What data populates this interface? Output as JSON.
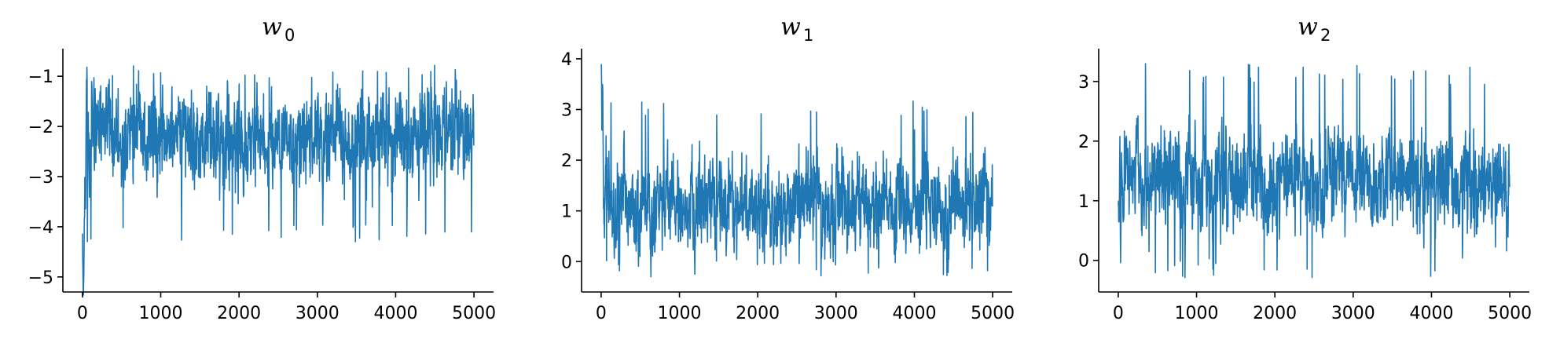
{
  "colors": {
    "series": "#1f77b4",
    "axis": "#000000",
    "background": "#ffffff"
  },
  "chart_data": [
    {
      "type": "line",
      "title": "w",
      "title_subscript": "0",
      "x_ticks": [
        0,
        1000,
        2000,
        3000,
        4000,
        5000
      ],
      "y_ticks": [
        -5,
        -4,
        -3,
        -2,
        -1
      ],
      "xlim": [
        -250,
        5250
      ],
      "ylim": [
        -5.3,
        -0.45
      ],
      "grid": false,
      "series": [
        {
          "n_samples": 5000,
          "x": [
            0,
            10,
            20,
            30,
            40,
            50,
            60,
            80,
            120,
            170,
            230,
            300,
            380,
            470,
            560,
            650,
            740,
            830,
            920,
            1010,
            1100,
            1190,
            1280,
            1370,
            1460,
            1550,
            1640,
            1730,
            1820,
            1910,
            2000,
            2090,
            2180,
            2270,
            2360,
            2450,
            2540,
            2630,
            2720,
            2810,
            2900,
            2990,
            3080,
            3170,
            3260,
            3350,
            3440,
            3530,
            3620,
            3710,
            3800,
            3890,
            3980,
            4070,
            4160,
            4250,
            4340,
            4430,
            4520,
            4610,
            4700,
            4790,
            4880,
            4970,
            5000
          ],
          "values": [
            -4.0,
            -5.2,
            -4.6,
            -3.2,
            -3.5,
            -1.3,
            -0.75,
            -2.8,
            -1.9,
            -2.4,
            -2.0,
            -2.2,
            -2.3,
            -2.1,
            -2.4,
            -2.2,
            -2.0,
            -2.3,
            -2.2,
            -2.5,
            -2.1,
            -2.3,
            -2.2,
            -2.0,
            -2.4,
            -2.3,
            -2.1,
            -2.2,
            -2.3,
            -2.0,
            -2.2,
            -2.6,
            -2.3,
            -2.1,
            -2.4,
            -2.2,
            -2.0,
            -2.3,
            -2.2,
            -2.4,
            -2.1,
            -2.2,
            -2.3,
            -2.0,
            -2.2,
            -2.4,
            -2.3,
            -2.1,
            -2.2,
            -2.5,
            -2.1,
            -2.2,
            -2.3,
            -2.0,
            -2.4,
            -2.2,
            -2.1,
            -2.3,
            -2.2,
            -2.0,
            -2.3,
            -2.1,
            -2.4,
            -2.2,
            -2.0
          ],
          "band_low": -3.55,
          "band_high": -1.2,
          "spike_low": -4.3,
          "spike_high": -0.7
        }
      ]
    },
    {
      "type": "line",
      "title": "w",
      "title_subscript": "1",
      "x_ticks": [
        0,
        1000,
        2000,
        3000,
        4000,
        5000
      ],
      "y_ticks": [
        0,
        1,
        2,
        3,
        4
      ],
      "xlim": [
        -250,
        5250
      ],
      "ylim": [
        -0.6,
        4.2
      ],
      "grid": false,
      "series": [
        {
          "n_samples": 5000,
          "x": [
            0,
            10,
            20,
            30,
            40,
            60,
            80,
            120,
            170,
            230,
            300,
            380,
            470,
            560,
            650,
            740,
            830,
            920,
            1010,
            1100,
            1190,
            1280,
            1370,
            1460,
            1550,
            1640,
            1730,
            1820,
            1910,
            2000,
            2090,
            2180,
            2270,
            2360,
            2450,
            2540,
            2630,
            2720,
            2810,
            2900,
            2990,
            3080,
            3170,
            3260,
            3350,
            3440,
            3530,
            3620,
            3710,
            3800,
            3890,
            3980,
            4070,
            4160,
            4250,
            4340,
            4430,
            4520,
            4610,
            4700,
            4790,
            4880,
            4970,
            5000
          ],
          "values": [
            4.0,
            2.7,
            3.6,
            1.2,
            0.6,
            1.9,
            1.3,
            1.1,
            1.0,
            1.3,
            1.2,
            1.1,
            0.9,
            1.2,
            1.0,
            1.1,
            1.3,
            1.2,
            1.0,
            1.1,
            1.3,
            1.2,
            1.4,
            1.1,
            1.2,
            1.0,
            1.3,
            1.2,
            1.1,
            1.2,
            1.0,
            0.9,
            1.1,
            0.7,
            1.0,
            1.2,
            1.1,
            1.3,
            1.2,
            1.0,
            1.1,
            1.2,
            1.0,
            1.3,
            1.2,
            1.1,
            0.9,
            1.2,
            1.1,
            1.3,
            1.0,
            1.2,
            1.1,
            1.3,
            1.2,
            1.0,
            1.1,
            1.2,
            1.3,
            1.1,
            1.0,
            1.2,
            1.0,
            0.9
          ],
          "band_low": 0.15,
          "band_high": 2.4,
          "spike_low": -0.3,
          "spike_high": 3.2
        }
      ]
    },
    {
      "type": "line",
      "title": "w",
      "title_subscript": "2",
      "x_ticks": [
        0,
        1000,
        2000,
        3000,
        4000,
        5000
      ],
      "y_ticks": [
        0,
        1,
        2,
        3
      ],
      "xlim": [
        -250,
        5250
      ],
      "ylim": [
        -0.53,
        3.55
      ],
      "grid": false,
      "series": [
        {
          "n_samples": 5000,
          "x": [
            0,
            10,
            20,
            30,
            40,
            60,
            80,
            120,
            170,
            230,
            300,
            380,
            470,
            560,
            650,
            740,
            830,
            920,
            1010,
            1100,
            1190,
            1280,
            1370,
            1460,
            1550,
            1640,
            1730,
            1820,
            1910,
            2000,
            2090,
            2180,
            2270,
            2360,
            2450,
            2540,
            2630,
            2720,
            2810,
            2900,
            2990,
            3080,
            3170,
            3260,
            3350,
            3440,
            3530,
            3620,
            3710,
            3800,
            3890,
            3980,
            4070,
            4160,
            4250,
            4340,
            4430,
            4520,
            4610,
            4700,
            4790,
            4880,
            4970,
            5000
          ],
          "values": [
            1.0,
            0.3,
            2.3,
            -0.15,
            1.6,
            0.8,
            1.9,
            1.4,
            1.2,
            1.5,
            1.3,
            1.1,
            1.4,
            1.2,
            1.5,
            1.3,
            1.2,
            1.4,
            1.3,
            1.6,
            1.2,
            1.4,
            1.3,
            1.5,
            1.2,
            1.3,
            1.5,
            1.4,
            1.2,
            1.3,
            1.4,
            1.2,
            1.5,
            1.3,
            1.4,
            1.2,
            1.3,
            1.5,
            1.4,
            1.3,
            1.2,
            1.4,
            1.5,
            1.3,
            1.2,
            1.4,
            1.3,
            1.5,
            1.4,
            1.2,
            1.3,
            1.4,
            1.5,
            1.3,
            1.4,
            1.2,
            1.5,
            1.3,
            1.4,
            1.2,
            1.3,
            1.4,
            0.8,
            1.3
          ],
          "band_low": 0.35,
          "band_high": 2.45,
          "spike_low": -0.3,
          "spike_high": 3.3
        }
      ]
    }
  ]
}
